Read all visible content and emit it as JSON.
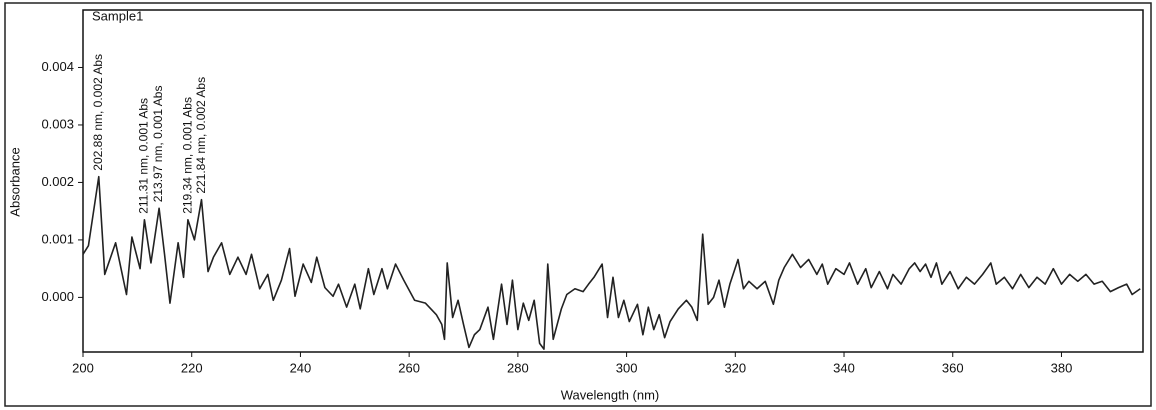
{
  "chart_data": {
    "type": "line",
    "title": "Sample1",
    "xlabel": "Wavelength (nm)",
    "ylabel": "Absorbance",
    "xlim": [
      200,
      395
    ],
    "ylim": [
      -0.00095,
      0.005
    ],
    "xticks": [
      200,
      220,
      240,
      260,
      280,
      300,
      320,
      340,
      360,
      380
    ],
    "yticks": [
      {
        "value": 0,
        "label": "0.000"
      },
      0.001,
      0.002,
      0.003,
      0.004
    ],
    "grid": false,
    "series": [
      {
        "name": "Sample1",
        "color": "#222222",
        "x": [
          200,
          201,
          202.9,
          204,
          206,
          208,
          209,
          210.5,
          211.3,
          212.5,
          214,
          215,
          216,
          217.5,
          218.5,
          219.3,
          220.5,
          221.8,
          223,
          224,
          225.5,
          227,
          228.5,
          230,
          231,
          232.5,
          234,
          235,
          236.5,
          238,
          239,
          240.5,
          242,
          243,
          244.5,
          246,
          247,
          248.5,
          250,
          251,
          252.5,
          253.5,
          255,
          256,
          257.5,
          259,
          261,
          263,
          265,
          266,
          266.5,
          267,
          268,
          269,
          270,
          271,
          272,
          273,
          274.5,
          275.5,
          277,
          278,
          279,
          280,
          281,
          282,
          283,
          284,
          284.8,
          285.5,
          286.5,
          288,
          289,
          290.5,
          292,
          293,
          294,
          295.5,
          296.5,
          297.5,
          298.5,
          299.5,
          300.5,
          302,
          303,
          304,
          305,
          306,
          307,
          308,
          309.5,
          311,
          312,
          313,
          314,
          315,
          316,
          317,
          318,
          319,
          320.5,
          321.5,
          322.5,
          324,
          325.5,
          327,
          328,
          329,
          330.5,
          332,
          333.5,
          335,
          336,
          337,
          338.5,
          340,
          341,
          342.5,
          344,
          345,
          346.5,
          348,
          349,
          350.5,
          352,
          353,
          354,
          355,
          356,
          357,
          358,
          359.5,
          361,
          362.5,
          364,
          365.5,
          367,
          368,
          369.5,
          371,
          372.5,
          374,
          375.5,
          377,
          378.5,
          380,
          381.5,
          383,
          384.5,
          386,
          387.5,
          389,
          390.5,
          392,
          393,
          394.5
        ],
        "values": [
          0.00075,
          0.0009,
          0.0021,
          0.0004,
          0.00095,
          5e-05,
          0.00105,
          0.0005,
          0.00135,
          0.0006,
          0.00155,
          0.00075,
          -0.0001,
          0.00095,
          0.00035,
          0.00135,
          0.001,
          0.0017,
          0.00045,
          0.0007,
          0.00095,
          0.0004,
          0.0007,
          0.0004,
          0.00075,
          0.00015,
          0.0004,
          -5e-05,
          0.0003,
          0.00085,
          2e-05,
          0.00058,
          0.00026,
          0.0007,
          0.00017,
          2e-05,
          0.00023,
          -0.00017,
          0.00023,
          -0.0002,
          0.0005,
          5e-05,
          0.0005,
          0.00015,
          0.00058,
          0.0003,
          -5e-05,
          -0.0001,
          -0.0003,
          -0.00047,
          -0.00073,
          0.0006,
          -0.00035,
          -5e-05,
          -0.00047,
          -0.00087,
          -0.00065,
          -0.00056,
          -0.00017,
          -0.00073,
          0.00023,
          -0.00047,
          0.0003,
          -0.00056,
          -0.0001,
          -0.0004,
          -5e-05,
          -0.0008,
          -0.0009,
          0.00058,
          -0.00073,
          -0.0002,
          5e-05,
          0.00015,
          0.0001,
          0.00023,
          0.00035,
          0.00058,
          -0.00035,
          0.00035,
          -0.00035,
          -5e-05,
          -0.00042,
          -0.00012,
          -0.00065,
          -0.00017,
          -0.00056,
          -0.0003,
          -0.0007,
          -0.00042,
          -0.0002,
          -5e-05,
          -0.00017,
          -0.0004,
          0.0011,
          -0.00012,
          0,
          0.0003,
          -0.00017,
          0.00023,
          0.00066,
          0.00015,
          0.00028,
          0.00015,
          0.00028,
          -0.00012,
          0.0003,
          0.00052,
          0.00075,
          0.00052,
          0.00066,
          0.0004,
          0.00058,
          0.00023,
          0.0005,
          0.0004,
          0.0006,
          0.00023,
          0.0005,
          0.00017,
          0.00045,
          0.00015,
          0.0004,
          0.00023,
          0.0005,
          0.0006,
          0.00045,
          0.00058,
          0.00035,
          0.0006,
          0.00023,
          0.00045,
          0.00015,
          0.00035,
          0.00023,
          0.0004,
          0.0006,
          0.00023,
          0.00035,
          0.00015,
          0.0004,
          0.00017,
          0.00035,
          0.00023,
          0.0005,
          0.00023,
          0.0004,
          0.00028,
          0.0004,
          0.00023,
          0.00028,
          0.0001,
          0.00017,
          0.00023,
          5e-05,
          0.00015
        ]
      }
    ],
    "annotations": [
      {
        "x": 202.88,
        "y": 0.002,
        "label": "202.88 nm, 0.002 Abs"
      },
      {
        "x": 211.31,
        "y": 0.001,
        "label": "211.31 nm, 0.001 Abs"
      },
      {
        "x": 213.97,
        "y": 0.001,
        "label": "213.97 nm, 0.001 Abs"
      },
      {
        "x": 219.34,
        "y": 0.001,
        "label": "219.34 nm, 0.001 Abs"
      },
      {
        "x": 221.84,
        "y": 0.002,
        "label": "221.84 nm, 0.002 Abs"
      }
    ]
  }
}
